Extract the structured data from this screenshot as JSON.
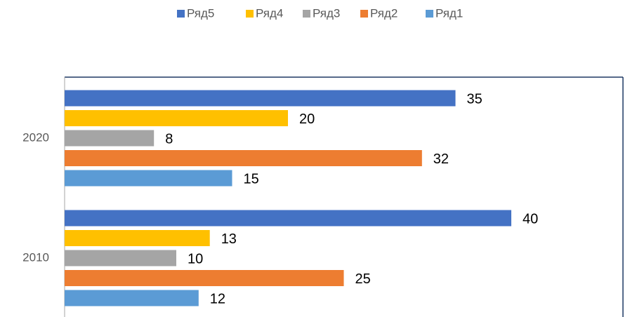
{
  "chart_data": {
    "type": "bar",
    "orientation": "horizontal",
    "categories": [
      "2010",
      "2020"
    ],
    "series": [
      {
        "name": "Ряд1",
        "color": "#5b9bd5",
        "values": [
          12,
          15
        ]
      },
      {
        "name": "Ряд2",
        "color": "#ed7d31",
        "values": [
          25,
          32
        ]
      },
      {
        "name": "Ряд3",
        "color": "#a5a5a5",
        "values": [
          10,
          8
        ]
      },
      {
        "name": "Ряд4",
        "color": "#ffc000",
        "values": [
          13,
          20
        ]
      },
      {
        "name": "Ряд5",
        "color": "#4472c4",
        "values": [
          40,
          35
        ]
      }
    ],
    "xlim": [
      0,
      50
    ],
    "legend": "top"
  }
}
